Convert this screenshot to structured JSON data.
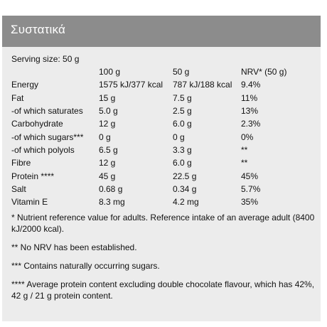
{
  "header": {
    "title": "Συστατικά"
  },
  "serving_size": "Serving size: 50 g",
  "table": {
    "columns": [
      "",
      "100 g",
      "50 g",
      "NRV* (50 g)"
    ],
    "rows": [
      {
        "name": "Energy",
        "per100": "1575 kJ/377 kcal",
        "per50": "787 kJ/188 kcal",
        "nrv": "9.4%"
      },
      {
        "name": "Fat",
        "per100": "15 g",
        "per50": "7.5 g",
        "nrv": "11%"
      },
      {
        "name": "-of which saturates",
        "per100": "5.0 g",
        "per50": "2.5 g",
        "nrv": "13%"
      },
      {
        "name": "Carbohydrate",
        "per100": "12 g",
        "per50": "6.0 g",
        "nrv": "2.3%"
      },
      {
        "name": "-of which sugars***",
        "per100": "0 g",
        "per50": "0 g",
        "nrv": "0%"
      },
      {
        "name": "-of which polyols",
        "per100": "6.5 g",
        "per50": "3.3 g",
        "nrv": "**"
      },
      {
        "name": "Fibre",
        "per100": "12 g",
        "per50": "6.0 g",
        "nrv": "**"
      },
      {
        "name": "Protein ****",
        "per100": "45 g",
        "per50": "22.5 g",
        "nrv": "45%"
      },
      {
        "name": "Salt",
        "per100": "0.68 g",
        "per50": "0.34 g",
        "nrv": "5.7%"
      },
      {
        "name": "Vitamin E",
        "per100": "8.3 mg",
        "per50": "4.2 mg",
        "nrv": "35%"
      }
    ]
  },
  "footnotes": [
    "* Nutrient reference value for adults. Reference intake of an average adult (8400 kJ/2000 kcal).",
    "** No NRV has been established.",
    "*** Contains naturally occurring sugars.",
    "**** Average protein content excluding double chocolate flavour, which has 42%, 42 g / 21 g protein content."
  ],
  "colors": {
    "header_bg": "#8c8c8c",
    "panel_bg": "#ececec",
    "text": "#111111"
  }
}
